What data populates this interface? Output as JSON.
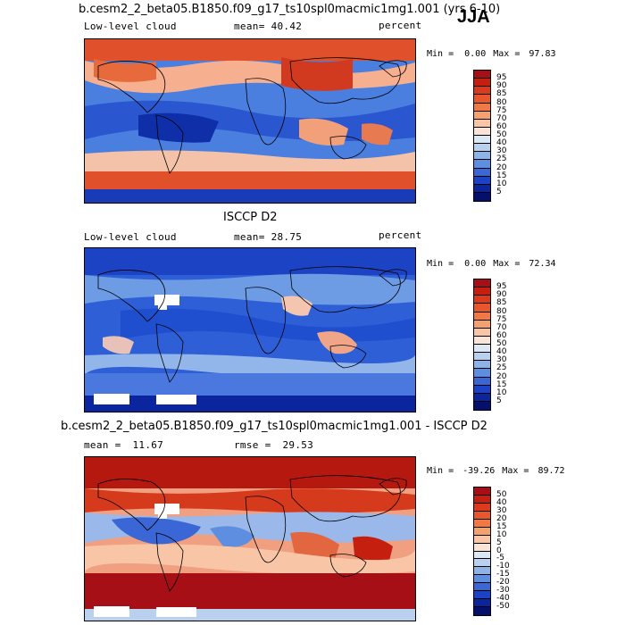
{
  "season": "JJA",
  "panels": [
    {
      "title": "b.cesm2_2_beta05.B1850.f09_g17_ts10spl0macmic1mg1.001 (yrs 6-10)",
      "variable": "Low-level cloud",
      "mean_label": "mean=",
      "mean": "40.42",
      "units": "percent",
      "min_label": "Min =",
      "min": "0.00",
      "max_label": "Max =",
      "max": "97.83"
    },
    {
      "title": "ISCCP D2",
      "variable": "Low-level cloud",
      "mean_label": "mean=",
      "mean": "28.75",
      "units": "percent",
      "min_label": "Min =",
      "min": "0.00",
      "max_label": "Max =",
      "max": "72.34"
    },
    {
      "title": "b.cesm2_2_beta05.B1850.f09_g17_ts10spl0macmic1mg1.001 - ISCCP D2",
      "mean_label": "mean =",
      "mean": "11.67",
      "rmse_label": "rmse =",
      "rmse": "29.53",
      "min_label": "Min =",
      "min": "-39.26",
      "max_label": "Max =",
      "max": "89.72"
    }
  ],
  "colorbar_abs": {
    "labels": [
      "95",
      "90",
      "85",
      "80",
      "75",
      "70",
      "60",
      "50",
      "40",
      "30",
      "25",
      "20",
      "15",
      "10",
      "5"
    ],
    "colors": [
      "#a50f15",
      "#c5200f",
      "#db3a1c",
      "#e8572c",
      "#f07a45",
      "#f5a16e",
      "#f8c6a6",
      "#fbe3d5",
      "#dde8f5",
      "#b9d0ef",
      "#8fb3e6",
      "#5e8ee0",
      "#3a66d6",
      "#1b43c4",
      "#0a259e",
      "#05106e"
    ]
  },
  "colorbar_diff": {
    "labels": [
      "50",
      "40",
      "30",
      "20",
      "15",
      "10",
      "5",
      "0",
      "-5",
      "-10",
      "-15",
      "-20",
      "-30",
      "-40",
      "-50"
    ],
    "colors": [
      "#a50f15",
      "#c5200f",
      "#db3a1c",
      "#e8572c",
      "#f07a45",
      "#f5a16e",
      "#f8c6a6",
      "#fbe3d5",
      "#dde8f5",
      "#b9d0ef",
      "#8fb3e6",
      "#5e8ee0",
      "#3a66d6",
      "#1b43c4",
      "#0a259e",
      "#05106e"
    ]
  }
}
